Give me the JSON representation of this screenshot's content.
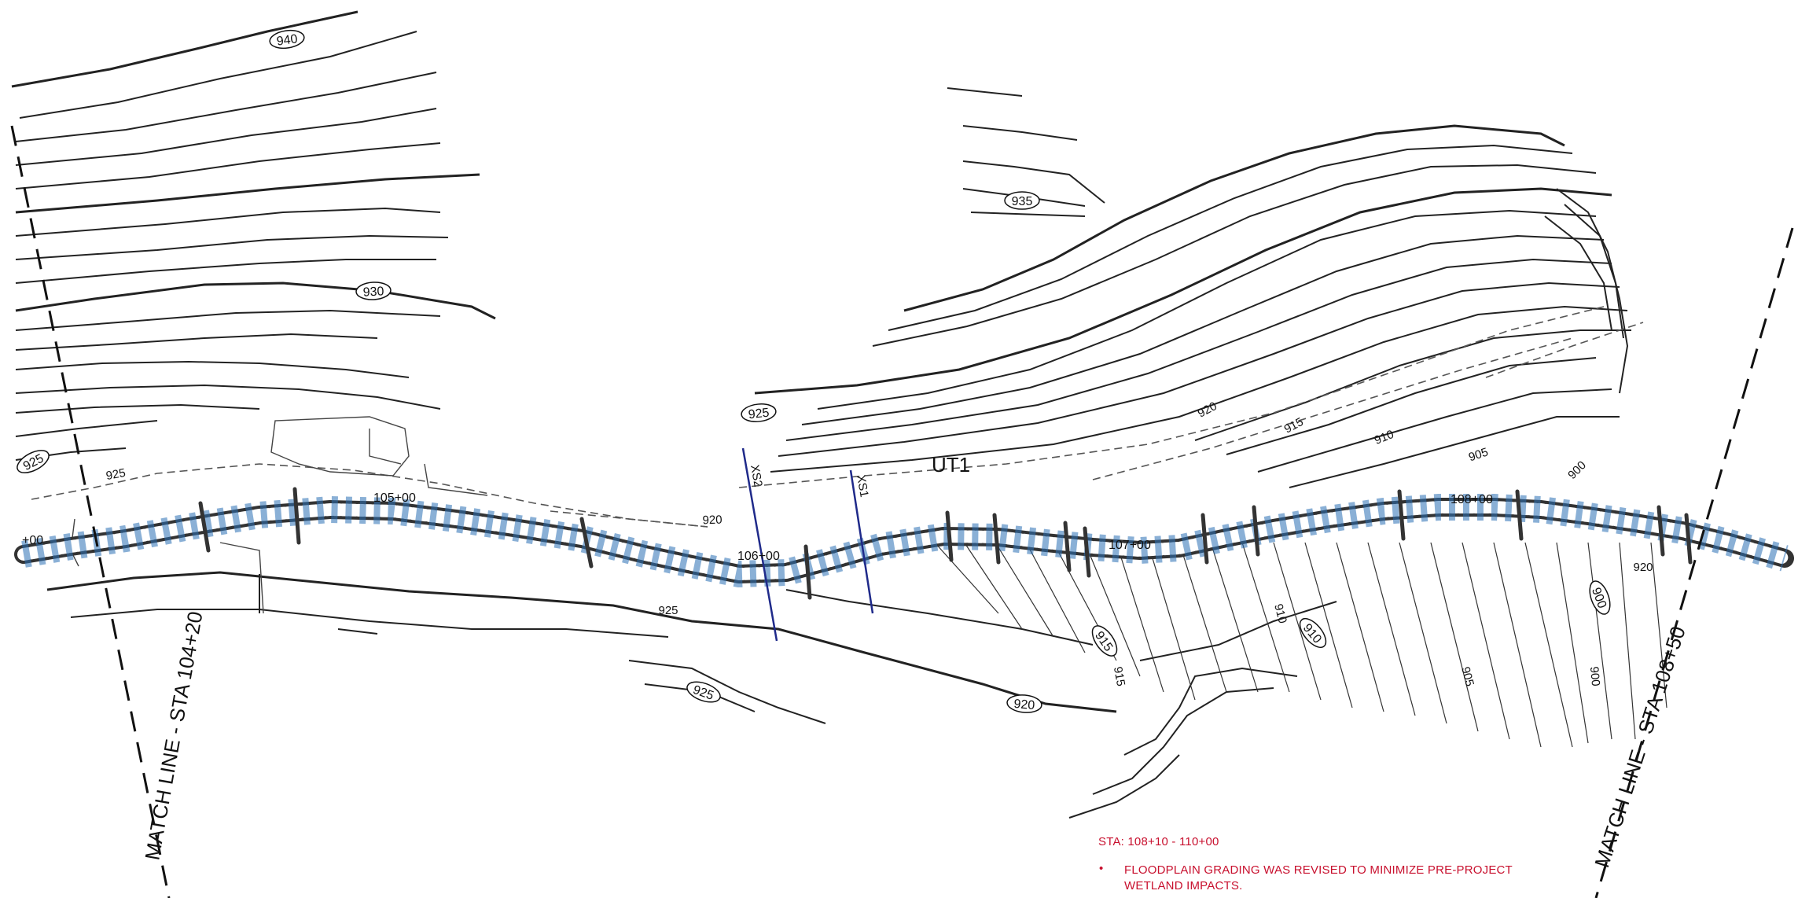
{
  "colors": {
    "contour_major": "#1a1a1a",
    "contour_minor": "#3a3a3a",
    "existing_dashed": "#555555",
    "cross_section": "#1f2a8a",
    "channel_dash": "#2a6fb5",
    "note": "#c8102e",
    "paper": "#ffffff"
  },
  "match_lines": {
    "left": "MATCH LINE - STA 104+20",
    "right": "MATCH LINE - STA 108+50"
  },
  "stream_label": "UT1",
  "contour_labels": [
    "940",
    "935",
    "930",
    "925",
    "925",
    "925",
    "920",
    "915",
    "910",
    "905",
    "900",
    "920",
    "915",
    "910",
    "905",
    "900",
    "925",
    "920",
    "925",
    "920",
    "915",
    "910",
    "900"
  ],
  "stations": [
    "+00",
    "105+00",
    "106+00",
    "107+00",
    "108+00"
  ],
  "cross_sections": [
    "XS2",
    "XS1"
  ],
  "notes": {
    "sta_range": "STA:  108+10 - 110+00",
    "bullet": "•",
    "line1": "FLOODPLAIN GRADING WAS REVISED TO MINIMIZE PRE-PROJECT",
    "line2": "WETLAND IMPACTS."
  }
}
